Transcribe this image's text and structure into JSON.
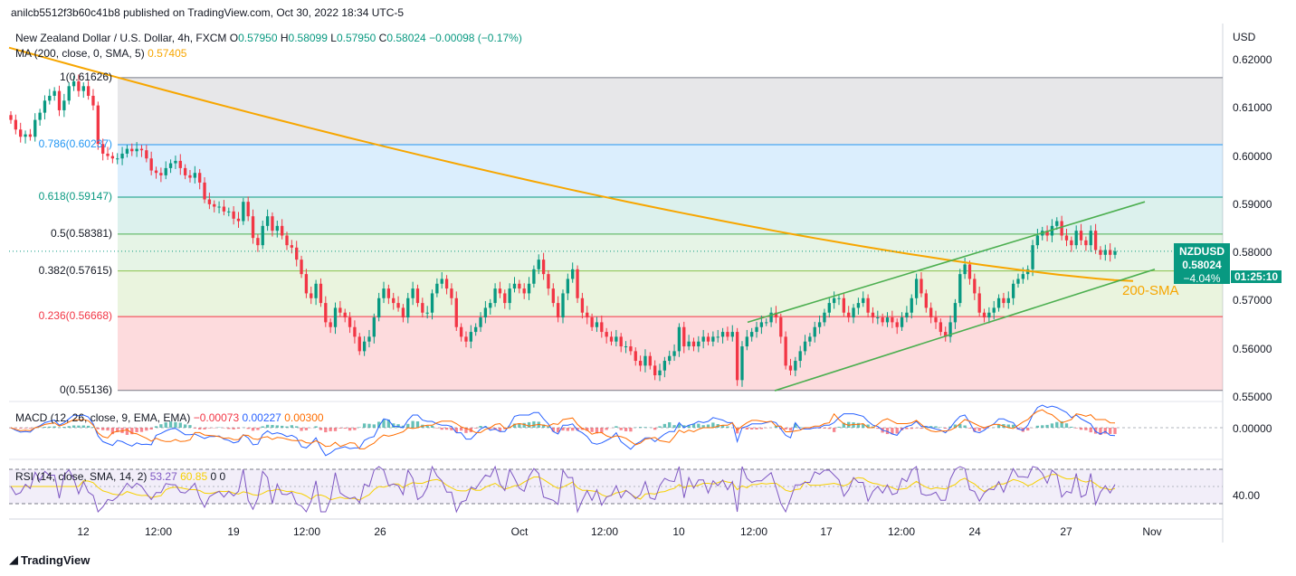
{
  "published": "anilcb5512f3b60c41b8 published on TradingView.com, Oct 30, 2022 18:34 UTC-5",
  "legend": {
    "symbol_desc": "New Zealand Dollar / U.S. Dollar, 4h, FXCM",
    "o_label": "O",
    "o_value": "0.57950",
    "h_label": "H",
    "h_value": "0.58099",
    "l_label": "L",
    "l_value": "0.57950",
    "c_label": "C",
    "c_value": "0.58024",
    "change": "−0.00098 (−0.17%)",
    "ma_label": "MA (200, close, 0, SMA, 5)",
    "ma_value": "0.57405"
  },
  "macd_legend": {
    "label": "MACD (12, 26, close, 9, EMA, EMA)",
    "hist": "−0.00073",
    "macd": "0.00227",
    "signal": "0.00300"
  },
  "rsi_legend": {
    "label": "RSI (14, close, SMA, 14, 2)",
    "rsi": "53.27",
    "ma": "60.85",
    "z1": "0",
    "z2": "0"
  },
  "price_axis": {
    "currency": "USD",
    "ticks": [
      "0.62000",
      "0.61000",
      "0.60000",
      "0.59000",
      "0.58000",
      "0.57000",
      "0.56000",
      "0.55000"
    ],
    "macd_tick": "0.00000",
    "rsi_tick": "40.00"
  },
  "price_tag": {
    "symbol": "NZDUSD",
    "price": "0.58024",
    "change": "−4.04%",
    "countdown": "01:25:10"
  },
  "time_axis": [
    "12",
    "12:00",
    "19",
    "12:00",
    "26",
    "Oct",
    "12:00",
    "10",
    "12:00",
    "17",
    "12:00",
    "24",
    "27",
    "Nov"
  ],
  "annotations": {
    "sma_label": "200-SMA"
  },
  "fib_levels": [
    {
      "label": "1(0.61626)",
      "value": 0.61626,
      "color": "#787b86"
    },
    {
      "label": "0.786(0.60237)",
      "value": 0.60237,
      "color": "#2196f3"
    },
    {
      "label": "0.618(0.59147)",
      "value": 0.59147,
      "color": "#089981"
    },
    {
      "label": "0.5(0.58381)",
      "value": 0.58381,
      "color": "#4caf50"
    },
    {
      "label": "0.382(0.57615)",
      "value": 0.57615,
      "color": "#8bc34a"
    },
    {
      "label": "0.236(0.56668)",
      "value": 0.56668,
      "color": "#f23645"
    },
    {
      "label": "0(0.55136)",
      "value": 0.55136,
      "color": "#787b86"
    }
  ],
  "colors": {
    "up": "#089981",
    "down": "#f23645",
    "sma": "#f7a600",
    "channel": "#4caf50",
    "macd": "#2962ff",
    "signal": "#ff6d00",
    "rsi": "#7e57c2"
  },
  "chart_data": {
    "type": "candlestick",
    "symbol": "NZDUSD",
    "timeframe": "4h",
    "ylim": [
      0.549,
      0.624
    ],
    "closes": [
      0.6075,
      0.6055,
      0.604,
      0.6045,
      0.604,
      0.6075,
      0.609,
      0.6115,
      0.6125,
      0.6135,
      0.6095,
      0.6115,
      0.6145,
      0.6155,
      0.6135,
      0.6145,
      0.6125,
      0.6105,
      0.6025,
      0.6005,
      0.6,
      0.5995,
      0.5995,
      0.6005,
      0.6015,
      0.601,
      0.6015,
      0.6012,
      0.5995,
      0.597,
      0.5965,
      0.596,
      0.5975,
      0.5985,
      0.599,
      0.5975,
      0.596,
      0.5955,
      0.5965,
      0.5945,
      0.591,
      0.59,
      0.5895,
      0.5895,
      0.5885,
      0.5885,
      0.587,
      0.5865,
      0.5905,
      0.5875,
      0.583,
      0.5815,
      0.5855,
      0.5875,
      0.5845,
      0.5855,
      0.5835,
      0.5815,
      0.581,
      0.5785,
      0.5755,
      0.5715,
      0.5705,
      0.5735,
      0.5695,
      0.5655,
      0.5645,
      0.5685,
      0.5675,
      0.5665,
      0.5645,
      0.5625,
      0.5595,
      0.5615,
      0.5625,
      0.5665,
      0.5705,
      0.5725,
      0.5705,
      0.5695,
      0.5685,
      0.5665,
      0.5705,
      0.5725,
      0.5695,
      0.5675,
      0.5675,
      0.5715,
      0.5735,
      0.5745,
      0.5725,
      0.5705,
      0.5645,
      0.5625,
      0.5615,
      0.5635,
      0.5645,
      0.5665,
      0.5685,
      0.5695,
      0.5725,
      0.5715,
      0.5695,
      0.5725,
      0.5735,
      0.5725,
      0.5715,
      0.5735,
      0.5765,
      0.5785,
      0.5755,
      0.5725,
      0.5695,
      0.5665,
      0.5715,
      0.5745,
      0.5765,
      0.5705,
      0.5675,
      0.5665,
      0.5645,
      0.5655,
      0.5635,
      0.5625,
      0.5615,
      0.5625,
      0.5605,
      0.5605,
      0.5595,
      0.5575,
      0.5565,
      0.5585,
      0.5565,
      0.5545,
      0.5555,
      0.5575,
      0.5585,
      0.5595,
      0.5645,
      0.5605,
      0.5615,
      0.5605,
      0.5615,
      0.5625,
      0.5615,
      0.5625,
      0.5625,
      0.5635,
      0.5625,
      0.5635,
      0.5535,
      0.5605,
      0.5625,
      0.5635,
      0.5645,
      0.5655,
      0.5655,
      0.5675,
      0.5665,
      0.5625,
      0.5565,
      0.5555,
      0.5575,
      0.5595,
      0.5615,
      0.5625,
      0.5645,
      0.5655,
      0.5675,
      0.5695,
      0.5705,
      0.5705,
      0.5675,
      0.5665,
      0.5685,
      0.5695,
      0.5705,
      0.5675,
      0.5665,
      0.5665,
      0.5655,
      0.5665,
      0.5655,
      0.5645,
      0.5665,
      0.5675,
      0.5705,
      0.5745,
      0.5715,
      0.5685,
      0.5665,
      0.5655,
      0.5635,
      0.5625,
      0.5655,
      0.5695,
      0.5755,
      0.5775,
      0.5745,
      0.5715,
      0.5675,
      0.5665,
      0.5675,
      0.5685,
      0.5705,
      0.5695,
      0.5705,
      0.5735,
      0.5745,
      0.5755,
      0.5765,
      0.5815,
      0.5835,
      0.5845,
      0.5835,
      0.5855,
      0.5865,
      0.5835,
      0.5825,
      0.5815,
      0.5845,
      0.5825,
      0.5815,
      0.5845,
      0.5805,
      0.5795,
      0.5805,
      0.5795,
      0.58024
    ],
    "sma200_start": 0.6225,
    "sma200_end": 0.57405,
    "channel": {
      "upper": [
        [
          0.5655,
          0.5905
        ]
      ],
      "lower": [
        [
          0.5513,
          0.5765
        ]
      ]
    },
    "macd_hist_example": [
      -0.00073
    ],
    "rsi_levels": [
      70,
      50,
      30
    ],
    "rsi_last": 53.27,
    "rsi_ma_last": 60.85
  }
}
